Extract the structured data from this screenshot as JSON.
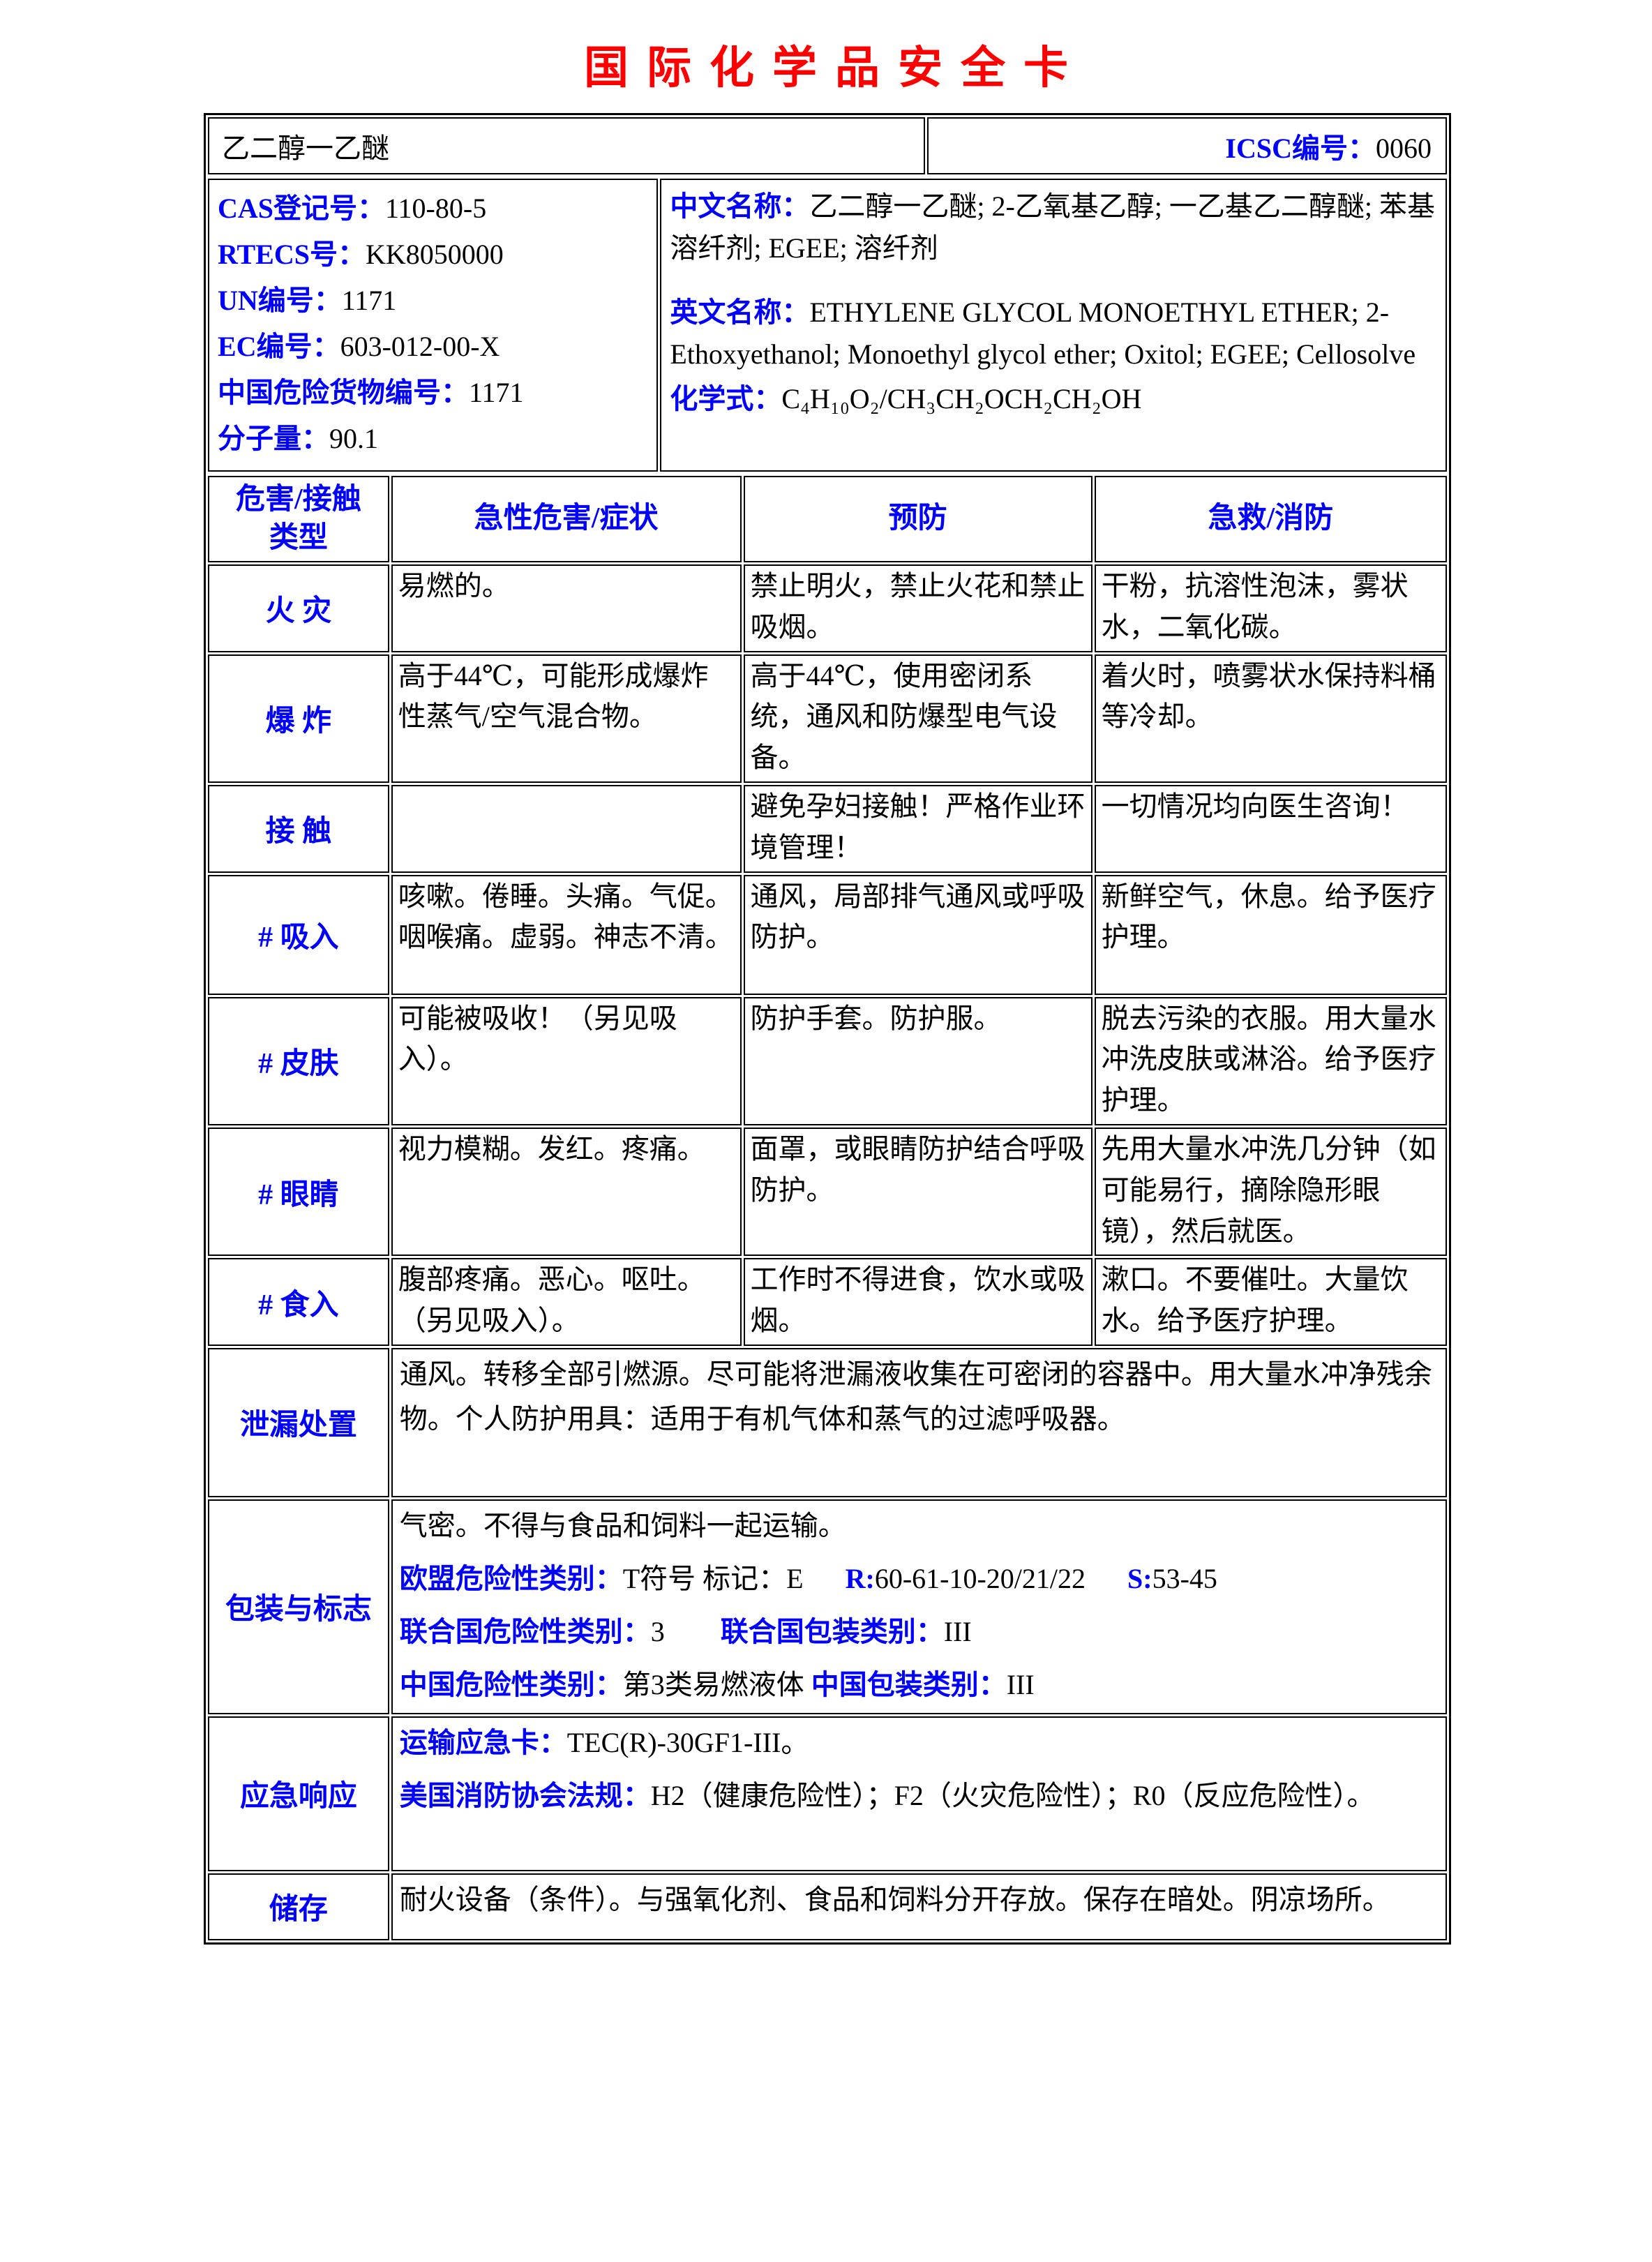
{
  "colors": {
    "title_red": "#ff0000",
    "label_blue": "#0000ff"
  },
  "title": "国际化学品安全卡",
  "header": {
    "substance_name": "乙二醇一乙醚",
    "icsc_label": "ICSC编号：",
    "icsc_number": "0060"
  },
  "identifiers": [
    {
      "label": "CAS登记号：",
      "value": "110-80-5"
    },
    {
      "label": "RTECS号：",
      "value": "KK8050000"
    },
    {
      "label": "UN编号：",
      "value": "1171"
    },
    {
      "label": "EC编号：",
      "value": "603-012-00-X"
    },
    {
      "label": "中国危险货物编号：",
      "value": "1171"
    },
    {
      "label": "分子量：",
      "value": "90.1"
    }
  ],
  "names": {
    "cn_label": "中文名称：",
    "cn_value": "乙二醇一乙醚; 2-乙氧基乙醇; 一乙基乙二醇醚; 苯基溶纤剂; EGEE; 溶纤剂",
    "en_label": "英文名称：",
    "en_value": "ETHYLENE GLYCOL MONOETHYL ETHER; 2-Ethoxyethanol; Monoethyl glycol ether; Oxitol; EGEE; Cellosolve",
    "formula_label": "化学式：",
    "formula_value": "C₄H₁₀O₂/CH₃CH₂OCH₂CH₂OH"
  },
  "hazard": {
    "headers": [
      "危害/接触\n类型",
      "急性危害/症状",
      "预防",
      "急救/消防"
    ],
    "rows": [
      {
        "label": "火 灾",
        "cells": [
          [
            [
              {
                "t": "易燃的。"
              }
            ]
          ],
          [
            [
              {
                "t": "禁止明火，禁止火花和禁止吸烟。"
              }
            ]
          ],
          [
            [
              {
                "t": "干粉，抗溶性泡沫，雾状水，二氧化碳。"
              }
            ]
          ]
        ]
      },
      {
        "label": "爆 炸",
        "cells": [
          [
            [
              {
                "t": "高于44℃，可能形成爆炸性蒸气/空气混合物。"
              }
            ]
          ],
          [
            [
              {
                "t": "高于44℃，使用密闭系统，通风和防爆型电气设备。"
              }
            ]
          ],
          [
            [
              {
                "t": "着火时，喷雾状水保持料桶等冷却。"
              }
            ]
          ]
        ]
      },
      {
        "label": "接 触",
        "cells": [
          [],
          [
            [
              {
                "t": "避免孕妇接触！严格作业环境管理！"
              }
            ]
          ],
          [
            [
              {
                "t": "一切情况均向医生咨询！"
              }
            ]
          ]
        ]
      },
      {
        "label": "# 吸入",
        "cells": [
          [
            [
              {
                "t": "咳嗽。倦睡。头痛。气促。咽喉痛。虚弱。神志不清。"
              }
            ]
          ],
          [
            [
              {
                "t": "通风，局部排气通风或呼吸防护。"
              }
            ]
          ],
          [
            [
              {
                "t": "新鲜空气，休息。给予医疗护理。"
              }
            ]
          ]
        ]
      },
      {
        "label": "# 皮肤",
        "cells": [
          [
            [
              {
                "t": "可能被吸收！（另见吸入）。"
              }
            ]
          ],
          [
            [
              {
                "t": "防护手套。防护服。"
              }
            ]
          ],
          [
            [
              {
                "t": "脱去污染的衣服。用大量水冲洗皮肤或淋浴。给予医疗护理。"
              }
            ]
          ]
        ]
      },
      {
        "label": "# 眼睛",
        "cells": [
          [
            [
              {
                "t": "视力模糊。发红。疼痛。"
              }
            ]
          ],
          [
            [
              {
                "t": "面罩，或眼睛防护结合呼吸防护。"
              }
            ]
          ],
          [
            [
              {
                "t": "先用大量水冲洗几分钟（如可能易行，摘除隐形眼镜），然后就医。"
              }
            ]
          ]
        ]
      },
      {
        "label": "# 食入",
        "cells": [
          [
            [
              {
                "t": "腹部疼痛。恶心。呕吐。（另见吸入）。"
              }
            ]
          ],
          [
            [
              {
                "t": "工作时不得进食，饮水或吸烟。"
              }
            ]
          ],
          [
            [
              {
                "t": "漱口。不要催吐。大量饮水。给予医疗护理。"
              }
            ]
          ]
        ]
      },
      {
        "label": "泄漏处置",
        "cells": [
          [
            [
              {
                "t": "通风。转移全部引燃源。尽可能将泄漏液收集在可密闭的容器中。用大量水冲净残余物。个人防护用具：适用于有机气体和蒸气的过滤呼吸器。"
              }
            ]
          ]
        ]
      },
      {
        "label": "包装与标志",
        "cells": [
          [
            [
              {
                "t": "气密。不得与食品和饲料一起运输。"
              }
            ],
            [
              {
                "t": "欧盟危险性类别：",
                "c": "b"
              },
              {
                "t": "T符号 标记：E      "
              },
              {
                "t": "R:",
                "c": "b"
              },
              {
                "t": "60-61-10-20/21/22      "
              },
              {
                "t": "S:",
                "c": "b"
              },
              {
                "t": "53-45"
              }
            ],
            [
              {
                "t": "联合国危险性类别：",
                "c": "b"
              },
              {
                "t": "3        "
              },
              {
                "t": "联合国包装类别：",
                "c": "b"
              },
              {
                "t": "III"
              }
            ],
            [
              {
                "t": "中国危险性类别：",
                "c": "b"
              },
              {
                "t": "第3类易燃液体 "
              },
              {
                "t": "中国包装类别：",
                "c": "b"
              },
              {
                "t": "III"
              }
            ]
          ]
        ]
      },
      {
        "label": "应急响应",
        "cells": [
          [
            [
              {
                "t": "运输应急卡：",
                "c": "b"
              },
              {
                "t": "TEC(R)-30GF1-III。"
              }
            ],
            [
              {
                "t": "美国消防协会法规：",
                "c": "b"
              },
              {
                "t": "H2（健康危险性）；F2（火灾危险性）；R0（反应危险性）。"
              }
            ]
          ]
        ]
      },
      {
        "label": "储存",
        "cells": [
          [
            [
              {
                "t": "耐火设备（条件）。与强氧化剂、食品和饲料分开存放。保存在暗处。阴凉场所。"
              }
            ]
          ]
        ]
      }
    ]
  }
}
